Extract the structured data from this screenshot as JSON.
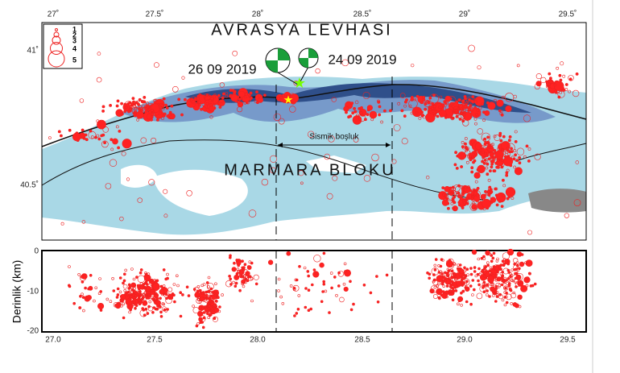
{
  "map": {
    "plate_label": "AVRASYA LEVHASI",
    "block_label": "MARMARA BLOKU",
    "event_labels": [
      "26 09 2019",
      "24 09 2019"
    ],
    "gap_label": "Sismik boşluk",
    "legend": [
      "1",
      "2",
      "3",
      "4",
      "5"
    ],
    "top_ticks": [
      "27˚",
      "27.5˚",
      "28˚",
      "28.5˚",
      "29˚",
      "29.5˚"
    ],
    "left_ticks": [
      "41˚",
      "40.5˚"
    ],
    "depth_axis_label": "Derinlik (km)",
    "depth_ticks": [
      "0",
      "-10",
      "-20"
    ],
    "bottom_ticks": [
      "27.0",
      "27.5",
      "28.0",
      "28.5",
      "29.0",
      "29.5"
    ]
  }
}
